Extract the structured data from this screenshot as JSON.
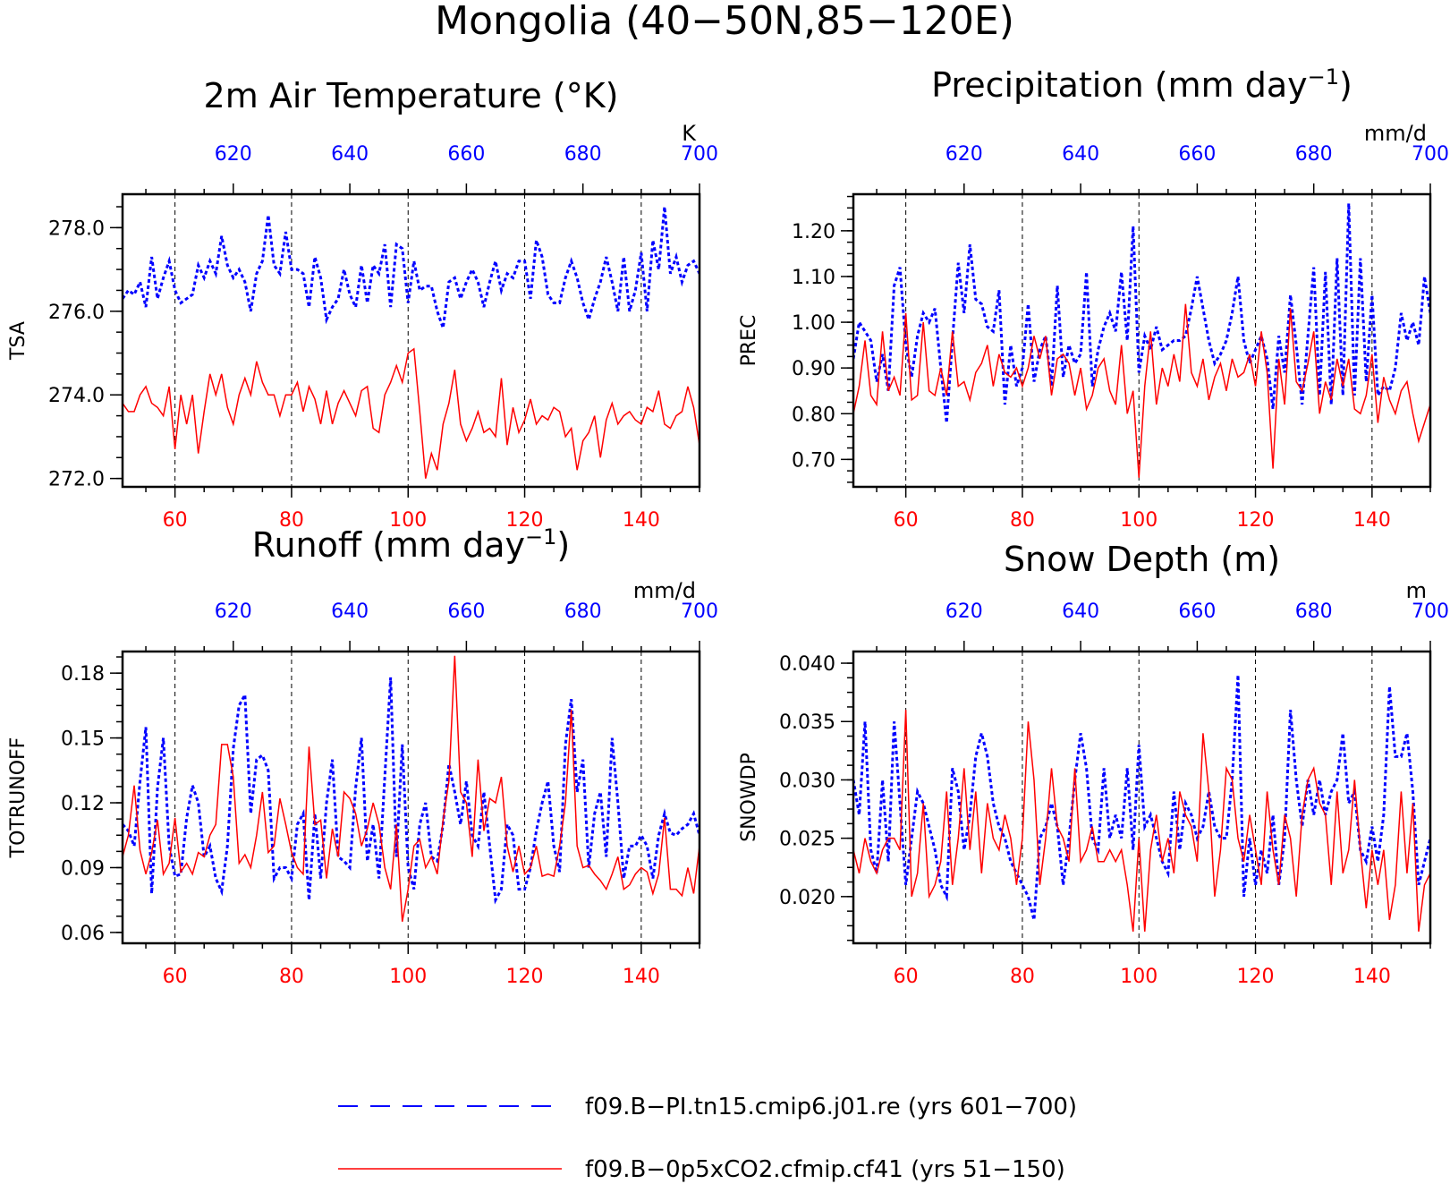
{
  "figure_title": "Mongolia (40−50N,85−120E)",
  "colors": {
    "control": "#0000ff",
    "experiment": "#ff0000",
    "axis": "#000000"
  },
  "legend": [
    {
      "label": "f09.B−PI.tn15.cmip6.j01.re (yrs 601−700)",
      "color": "#0000ff",
      "style": "dashed"
    },
    {
      "label": "f09.B−0p5xCO2.cfmip.cf41 (yrs 51−150)",
      "color": "#ff0000",
      "style": "solid"
    }
  ],
  "chart_data": [
    {
      "type": "line",
      "title": "2m Air Temperature (°K)",
      "ylabel": "TSA",
      "units": "K",
      "x_bottom": {
        "range": [
          51,
          150
        ],
        "ticks": [
          60,
          80,
          100,
          120,
          140
        ]
      },
      "x_top": {
        "range": [
          601,
          700
        ],
        "ticks": [
          620,
          640,
          660,
          680,
          700
        ]
      },
      "ylim": [
        271.8,
        278.8
      ],
      "yticks": [
        "272.0",
        "274.0",
        "276.0",
        "278.0"
      ],
      "yminor": 0.5,
      "grid": "vertical dashed at 60, 80, 100, 120, 140",
      "series": [
        {
          "color": "#0000ff",
          "style": "dashed",
          "values": [
            276.3,
            276.5,
            276.4,
            276.7,
            276.1,
            277.3,
            276.3,
            276.8,
            277.2,
            276.5,
            276.2,
            276.3,
            276.4,
            277.1,
            276.8,
            277.2,
            276.9,
            277.8,
            277.1,
            276.8,
            277.0,
            276.7,
            276.0,
            276.9,
            277.2,
            278.3,
            277.1,
            276.9,
            277.9,
            277.0,
            277.0,
            276.9,
            276.1,
            277.3,
            276.8,
            275.8,
            276.1,
            276.3,
            277.0,
            276.4,
            276.1,
            277.1,
            276.2,
            277.1,
            276.9,
            277.6,
            276.1,
            277.6,
            277.5,
            276.2,
            277.2,
            276.5,
            276.6,
            276.6,
            276.0,
            275.6,
            276.7,
            276.8,
            276.3,
            276.7,
            277.0,
            276.7,
            276.1,
            276.7,
            277.2,
            276.5,
            276.9,
            276.8,
            277.2,
            277.2,
            276.3,
            277.7,
            277.3,
            276.4,
            276.2,
            276.2,
            276.8,
            277.2,
            276.8,
            276.2,
            275.8,
            276.3,
            276.7,
            277.3,
            276.7,
            276.0,
            277.3,
            276.0,
            276.5,
            277.4,
            276.0,
            277.7,
            277.0,
            278.5,
            276.9,
            277.3,
            276.7,
            277.1,
            277.2,
            276.9
          ]
        },
        {
          "color": "#ff0000",
          "style": "solid",
          "values": [
            273.8,
            273.6,
            273.6,
            274.0,
            274.2,
            273.8,
            273.7,
            273.5,
            274.2,
            272.7,
            274.0,
            273.3,
            274.0,
            272.6,
            273.6,
            274.5,
            274.0,
            274.5,
            273.7,
            273.3,
            274.0,
            274.4,
            274.0,
            274.8,
            274.3,
            274.0,
            274.0,
            273.5,
            274.0,
            274.0,
            274.3,
            273.6,
            274.2,
            273.9,
            273.3,
            274.1,
            273.3,
            273.8,
            274.1,
            273.8,
            273.5,
            274.1,
            274.2,
            273.2,
            273.1,
            274.0,
            274.3,
            274.7,
            274.3,
            275.0,
            275.1,
            273.6,
            272.0,
            272.6,
            272.2,
            273.3,
            273.8,
            274.6,
            273.3,
            272.9,
            273.2,
            273.6,
            273.1,
            273.2,
            273.0,
            274.4,
            272.8,
            273.7,
            273.1,
            273.4,
            273.9,
            273.3,
            273.5,
            273.4,
            273.7,
            273.6,
            273.0,
            273.2,
            272.2,
            272.9,
            273.1,
            273.5,
            272.5,
            273.4,
            273.8,
            273.3,
            273.5,
            273.6,
            273.4,
            273.3,
            273.7,
            273.6,
            274.1,
            273.3,
            273.2,
            273.5,
            273.6,
            274.2,
            273.7,
            272.8
          ]
        }
      ]
    },
    {
      "type": "line",
      "title": "Precipitation (mm day",
      "title_sup": "−1",
      "title_end": ")",
      "ylabel": "PREC",
      "units": "mm/d",
      "x_bottom": {
        "range": [
          51,
          150
        ],
        "ticks": [
          60,
          80,
          100,
          120,
          140
        ]
      },
      "x_top": {
        "range": [
          601,
          700
        ],
        "ticks": [
          620,
          640,
          660,
          680,
          700
        ]
      },
      "ylim": [
        0.64,
        1.28
      ],
      "yticks": [
        "0.70",
        "0.80",
        "0.90",
        "1.00",
        "1.10",
        "1.20"
      ],
      "yminor": 0.025,
      "grid": "vertical dashed at 60, 80, 100, 120, 140",
      "series": [
        {
          "color": "#0000ff",
          "style": "dashed",
          "values": [
            0.92,
            1.0,
            0.98,
            0.96,
            0.87,
            0.93,
            0.85,
            1.08,
            1.12,
            0.95,
            0.88,
            0.97,
            1.02,
            1.0,
            1.03,
            0.9,
            0.78,
            0.96,
            1.13,
            1.02,
            1.17,
            1.05,
            1.04,
            0.99,
            0.98,
            1.07,
            0.82,
            0.95,
            0.86,
            0.9,
            1.04,
            0.87,
            0.94,
            0.97,
            0.86,
            1.08,
            0.88,
            0.95,
            0.91,
            0.93,
            1.11,
            0.86,
            0.94,
            0.99,
            1.02,
            0.98,
            1.11,
            0.96,
            1.21,
            0.89,
            0.97,
            0.94,
            0.99,
            0.94,
            0.95,
            0.96,
            0.96,
            0.97,
            1.03,
            1.1,
            1.03,
            0.96,
            0.91,
            0.93,
            0.96,
            1.02,
            1.1,
            0.96,
            0.91,
            0.94,
            0.97,
            0.92,
            0.81,
            0.97,
            0.89,
            1.06,
            0.95,
            0.82,
            0.97,
            1.12,
            0.84,
            1.11,
            0.82,
            1.14,
            0.84,
            1.26,
            0.84,
            1.14,
            0.87,
            1.06,
            0.84,
            0.86,
            0.85,
            0.9,
            1.02,
            0.96,
            1.0,
            0.95,
            1.1,
            1.02
          ]
        },
        {
          "color": "#ff0000",
          "style": "solid",
          "values": [
            0.8,
            0.86,
            0.96,
            0.84,
            0.82,
            0.98,
            0.85,
            0.88,
            0.84,
            1.02,
            0.83,
            0.84,
            1.0,
            0.85,
            0.84,
            0.9,
            0.84,
            0.98,
            0.86,
            0.87,
            0.83,
            0.89,
            0.91,
            0.95,
            0.86,
            0.93,
            0.89,
            0.88,
            0.9,
            0.86,
            0.9,
            0.97,
            0.92,
            0.97,
            0.84,
            0.92,
            0.93,
            0.91,
            0.84,
            0.9,
            0.81,
            0.84,
            0.9,
            0.92,
            0.85,
            0.82,
            0.95,
            0.8,
            0.85,
            0.66,
            0.86,
            0.98,
            0.82,
            0.9,
            0.86,
            0.93,
            0.87,
            1.04,
            0.89,
            0.86,
            0.92,
            0.83,
            0.88,
            0.91,
            0.85,
            0.92,
            0.88,
            0.89,
            0.93,
            0.86,
            0.98,
            0.89,
            0.68,
            0.92,
            0.82,
            1.03,
            0.87,
            0.85,
            0.91,
            0.98,
            0.8,
            0.87,
            0.83,
            0.92,
            0.86,
            0.92,
            0.81,
            0.8,
            0.84,
            0.93,
            0.78,
            0.88,
            0.83,
            0.8,
            0.85,
            0.87,
            0.8,
            0.74,
            0.78,
            0.82
          ]
        }
      ]
    },
    {
      "type": "line",
      "title": "Runoff (mm day",
      "title_sup": "−1",
      "title_end": ")",
      "ylabel": "TOTRUNOFF",
      "units": "mm/d",
      "x_bottom": {
        "range": [
          51,
          150
        ],
        "ticks": [
          60,
          80,
          100,
          120,
          140
        ]
      },
      "x_top": {
        "range": [
          601,
          700
        ],
        "ticks": [
          620,
          640,
          660,
          680,
          700
        ]
      },
      "ylim": [
        0.055,
        0.19
      ],
      "yticks": [
        "0.06",
        "0.09",
        "0.12",
        "0.15",
        "0.18"
      ],
      "yminor": 0.0075,
      "grid": "vertical dashed at 60, 80, 100, 120, 140",
      "series": [
        {
          "color": "#0000ff",
          "style": "dashed",
          "values": [
            0.11,
            0.107,
            0.1,
            0.13,
            0.155,
            0.078,
            0.127,
            0.15,
            0.1,
            0.086,
            0.087,
            0.113,
            0.128,
            0.12,
            0.095,
            0.1,
            0.085,
            0.079,
            0.1,
            0.145,
            0.165,
            0.17,
            0.115,
            0.14,
            0.142,
            0.135,
            0.085,
            0.09,
            0.09,
            0.085,
            0.11,
            0.115,
            0.075,
            0.115,
            0.085,
            0.12,
            0.14,
            0.095,
            0.093,
            0.09,
            0.127,
            0.15,
            0.093,
            0.11,
            0.085,
            0.132,
            0.178,
            0.095,
            0.147,
            0.09,
            0.08,
            0.11,
            0.12,
            0.095,
            0.093,
            0.11,
            0.138,
            0.125,
            0.11,
            0.13,
            0.105,
            0.1,
            0.125,
            0.1,
            0.075,
            0.08,
            0.11,
            0.105,
            0.08,
            0.08,
            0.09,
            0.107,
            0.12,
            0.13,
            0.1,
            0.088,
            0.147,
            0.168,
            0.125,
            0.14,
            0.09,
            0.115,
            0.125,
            0.095,
            0.15,
            0.12,
            0.085,
            0.1,
            0.1,
            0.105,
            0.1,
            0.085,
            0.105,
            0.115,
            0.106,
            0.105,
            0.108,
            0.11,
            0.115,
            0.105
          ]
        },
        {
          "color": "#ff0000",
          "style": "solid",
          "values": [
            0.095,
            0.105,
            0.128,
            0.098,
            0.087,
            0.097,
            0.112,
            0.087,
            0.092,
            0.113,
            0.088,
            0.092,
            0.087,
            0.097,
            0.095,
            0.105,
            0.11,
            0.147,
            0.147,
            0.132,
            0.092,
            0.096,
            0.09,
            0.105,
            0.125,
            0.097,
            0.1,
            0.122,
            0.11,
            0.097,
            0.09,
            0.087,
            0.146,
            0.11,
            0.112,
            0.085,
            0.108,
            0.095,
            0.125,
            0.122,
            0.115,
            0.1,
            0.108,
            0.12,
            0.11,
            0.09,
            0.08,
            0.11,
            0.065,
            0.08,
            0.1,
            0.103,
            0.09,
            0.095,
            0.087,
            0.112,
            0.13,
            0.188,
            0.125,
            0.12,
            0.095,
            0.14,
            0.107,
            0.122,
            0.12,
            0.132,
            0.1,
            0.088,
            0.1,
            0.087,
            0.09,
            0.1,
            0.086,
            0.087,
            0.086,
            0.1,
            0.12,
            0.163,
            0.1,
            0.09,
            0.091,
            0.087,
            0.084,
            0.08,
            0.087,
            0.095,
            0.08,
            0.082,
            0.087,
            0.09,
            0.088,
            0.078,
            0.087,
            0.113,
            0.08,
            0.08,
            0.077,
            0.09,
            0.078,
            0.1
          ]
        }
      ]
    },
    {
      "type": "line",
      "title": "Snow Depth (m)",
      "ylabel": "SNOWDP",
      "units": "m",
      "x_bottom": {
        "range": [
          51,
          150
        ],
        "ticks": [
          60,
          80,
          100,
          120,
          140
        ]
      },
      "x_top": {
        "range": [
          601,
          700
        ],
        "ticks": [
          620,
          640,
          660,
          680,
          700
        ]
      },
      "ylim": [
        0.016,
        0.041
      ],
      "yticks": [
        "0.020",
        "0.025",
        "0.030",
        "0.035",
        "0.040"
      ],
      "yminor": 0.00125,
      "grid": "vertical dashed at 60, 80, 100, 120, 140",
      "series": [
        {
          "color": "#0000ff",
          "style": "dashed",
          "values": [
            0.03,
            0.027,
            0.035,
            0.024,
            0.022,
            0.03,
            0.023,
            0.035,
            0.028,
            0.021,
            0.025,
            0.029,
            0.028,
            0.026,
            0.024,
            0.021,
            0.02,
            0.031,
            0.029,
            0.024,
            0.027,
            0.032,
            0.034,
            0.032,
            0.028,
            0.026,
            0.025,
            0.023,
            0.022,
            0.021,
            0.02,
            0.018,
            0.025,
            0.026,
            0.028,
            0.026,
            0.021,
            0.025,
            0.03,
            0.034,
            0.031,
            0.025,
            0.024,
            0.031,
            0.025,
            0.027,
            0.025,
            0.031,
            0.024,
            0.033,
            0.026,
            0.027,
            0.025,
            0.023,
            0.022,
            0.029,
            0.024,
            0.028,
            0.027,
            0.025,
            0.026,
            0.029,
            0.026,
            0.025,
            0.025,
            0.03,
            0.039,
            0.02,
            0.025,
            0.021,
            0.024,
            0.022,
            0.027,
            0.021,
            0.025,
            0.036,
            0.03,
            0.026,
            0.03,
            0.027,
            0.03,
            0.027,
            0.029,
            0.03,
            0.034,
            0.028,
            0.029,
            0.024,
            0.023,
            0.026,
            0.023,
            0.027,
            0.038,
            0.032,
            0.032,
            0.034,
            0.029,
            0.021,
            0.023,
            0.025
          ]
        },
        {
          "color": "#ff0000",
          "style": "solid",
          "values": [
            0.024,
            0.022,
            0.025,
            0.023,
            0.022,
            0.024,
            0.025,
            0.025,
            0.024,
            0.036,
            0.02,
            0.022,
            0.028,
            0.02,
            0.021,
            0.023,
            0.029,
            0.021,
            0.025,
            0.031,
            0.024,
            0.029,
            0.022,
            0.028,
            0.025,
            0.024,
            0.027,
            0.025,
            0.021,
            0.025,
            0.035,
            0.03,
            0.021,
            0.025,
            0.031,
            0.026,
            0.025,
            0.023,
            0.031,
            0.023,
            0.024,
            0.026,
            0.023,
            0.023,
            0.024,
            0.023,
            0.024,
            0.021,
            0.017,
            0.025,
            0.017,
            0.024,
            0.027,
            0.023,
            0.025,
            0.022,
            0.029,
            0.027,
            0.026,
            0.023,
            0.034,
            0.029,
            0.02,
            0.024,
            0.031,
            0.03,
            0.025,
            0.023,
            0.027,
            0.024,
            0.021,
            0.029,
            0.024,
            0.021,
            0.027,
            0.025,
            0.02,
            0.027,
            0.03,
            0.031,
            0.028,
            0.027,
            0.021,
            0.029,
            0.022,
            0.024,
            0.03,
            0.024,
            0.019,
            0.024,
            0.021,
            0.024,
            0.018,
            0.021,
            0.029,
            0.022,
            0.028,
            0.017,
            0.021,
            0.022
          ]
        }
      ]
    }
  ]
}
